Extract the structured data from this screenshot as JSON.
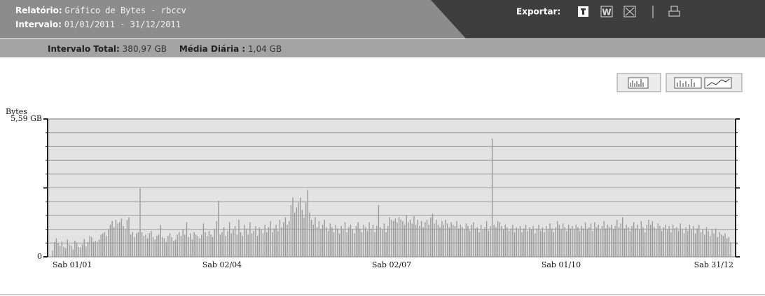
{
  "header": {
    "report_label": "Relatório:",
    "report_value": "Gráfico de Bytes - rbccv",
    "interval_label": "Intervalo:",
    "interval_value": "01/01/2011 - 31/12/2011",
    "export_label": "Exportar:"
  },
  "summary": {
    "total_label": "Intervalo Total:",
    "total_value": "380,97 GB",
    "daily_label": "Média Diária :",
    "daily_value": "1,04 GB"
  },
  "chart_data": {
    "type": "bar",
    "y_label": "Bytes",
    "color": "#9a9a9a",
    "ylim": [
      0,
      5.59
    ],
    "yticks": [
      0,
      {
        "value": 0.559,
        "label": null
      },
      {
        "value": 1.118,
        "label": null
      },
      {
        "value": 1.677,
        "label": null
      },
      {
        "value": 2.236,
        "label": null
      },
      {
        "value": 2.795,
        "label": null
      },
      {
        "value": 3.354,
        "label": null
      },
      {
        "value": 3.913,
        "label": null
      },
      {
        "value": 4.472,
        "label": null
      },
      {
        "value": 5.031,
        "label": null
      },
      {
        "value": 5.59,
        "label": "5,59 GB"
      }
    ],
    "grid": true,
    "categories": [
      "Sab 01/01",
      null,
      null,
      null,
      null,
      null,
      null,
      null,
      null,
      null,
      null,
      null,
      null,
      null,
      null,
      null,
      null,
      null,
      null,
      null,
      null,
      null,
      null,
      null,
      null,
      null,
      null,
      null,
      null,
      null,
      null,
      null,
      null,
      null,
      null,
      null,
      null,
      null,
      null,
      null,
      null,
      null,
      null,
      null,
      null,
      null,
      null,
      null,
      null,
      null,
      null,
      null,
      null,
      null,
      null,
      null,
      null,
      null,
      null,
      null,
      null,
      null,
      null,
      null,
      null,
      null,
      null,
      null,
      null,
      null,
      null,
      null,
      null,
      null,
      null,
      null,
      null,
      null,
      null,
      null,
      null,
      null,
      null,
      null,
      null,
      null,
      null,
      null,
      null,
      null,
      null,
      "Sab 02/04",
      null,
      null,
      null,
      null,
      null,
      null,
      null,
      null,
      null,
      null,
      null,
      null,
      null,
      null,
      null,
      null,
      null,
      null,
      null,
      null,
      null,
      null,
      null,
      null,
      null,
      null,
      null,
      null,
      null,
      null,
      null,
      null,
      null,
      null,
      null,
      null,
      null,
      null,
      null,
      null,
      null,
      null,
      null,
      null,
      null,
      null,
      null,
      null,
      null,
      null,
      null,
      null,
      null,
      null,
      null,
      null,
      null,
      null,
      null,
      null,
      null,
      null,
      null,
      null,
      null,
      null,
      null,
      null,
      null,
      null,
      null,
      null,
      null,
      null,
      null,
      null,
      null,
      null,
      null,
      null,
      null,
      null,
      null,
      null,
      null,
      null,
      null,
      null,
      null,
      null,
      "Sab 02/07",
      null,
      null,
      null,
      null,
      null,
      null,
      null,
      null,
      null,
      null,
      null,
      null,
      null,
      null,
      null,
      null,
      null,
      null,
      null,
      null,
      null,
      null,
      null,
      null,
      null,
      null,
      null,
      null,
      null,
      null,
      null,
      null,
      null,
      null,
      null,
      null,
      null,
      null,
      null,
      null,
      null,
      null,
      null,
      null,
      null,
      null,
      null,
      null,
      null,
      null,
      null,
      null,
      null,
      null,
      null,
      null,
      null,
      null,
      null,
      null,
      null,
      null,
      null,
      null,
      null,
      null,
      null,
      null,
      null,
      null,
      null,
      null,
      null,
      null,
      null,
      null,
      null,
      null,
      null,
      null,
      null,
      null,
      null,
      null,
      null,
      null,
      null,
      null,
      null,
      null,
      "Sab 01/10",
      null,
      null,
      null,
      null,
      null,
      null,
      null,
      null,
      null,
      null,
      null,
      null,
      null,
      null,
      null,
      null,
      null,
      null,
      null,
      null,
      null,
      null,
      null,
      null,
      null,
      null,
      null,
      null,
      null,
      null,
      null,
      null,
      null,
      null,
      null,
      null,
      null,
      null,
      null,
      null,
      null,
      null,
      null,
      null,
      null,
      null,
      null,
      null,
      null,
      null,
      null,
      null,
      null,
      null,
      null,
      null,
      null,
      null,
      null,
      null,
      null,
      null,
      null,
      null,
      null,
      null,
      null,
      null,
      null,
      null,
      null,
      null,
      null,
      null,
      null,
      null,
      null,
      null,
      null,
      null,
      null,
      null,
      null,
      null,
      null,
      null,
      null,
      null,
      null,
      null,
      "Sab 31/12"
    ],
    "values": [
      0.25,
      0.6,
      0.75,
      0.55,
      0.45,
      0.62,
      0.4,
      0.35,
      0.7,
      0.5,
      0.45,
      0.3,
      0.65,
      0.55,
      0.4,
      0.38,
      0.5,
      0.72,
      0.42,
      0.6,
      0.85,
      0.8,
      0.6,
      0.65,
      0.62,
      0.7,
      0.9,
      0.95,
      1.0,
      0.85,
      1.1,
      1.3,
      1.45,
      1.2,
      1.5,
      1.35,
      1.4,
      1.55,
      1.25,
      1.1,
      1.5,
      1.6,
      0.9,
      1.0,
      0.8,
      0.95,
      1.0,
      2.81,
      1.0,
      0.85,
      0.9,
      0.75,
      0.95,
      1.05,
      0.8,
      0.7,
      0.85,
      0.9,
      1.3,
      0.8,
      0.75,
      0.6,
      0.85,
      0.95,
      0.8,
      0.65,
      0.7,
      0.9,
      1.0,
      0.85,
      1.1,
      0.9,
      1.4,
      0.8,
      0.95,
      0.7,
      1.0,
      0.9,
      0.85,
      0.75,
      0.9,
      1.35,
      1.0,
      0.85,
      1.05,
      0.9,
      0.8,
      1.1,
      1.45,
      2.27,
      0.9,
      1.0,
      1.2,
      0.85,
      1.05,
      1.4,
      0.95,
      1.1,
      1.25,
      0.9,
      1.5,
      1.0,
      0.85,
      1.3,
      1.1,
      0.9,
      1.4,
      0.95,
      1.05,
      1.25,
      0.85,
      1.2,
      1.1,
      0.95,
      1.3,
      1.0,
      1.2,
      1.45,
      1.0,
      1.15,
      1.3,
      1.05,
      1.5,
      1.2,
      1.4,
      1.6,
      1.3,
      1.45,
      2.1,
      2.4,
      1.8,
      2.0,
      2.2,
      2.4,
      1.9,
      1.6,
      2.2,
      2.7,
      1.8,
      1.5,
      1.3,
      1.6,
      1.2,
      1.45,
      1.1,
      1.3,
      1.5,
      1.2,
      1.05,
      1.35,
      1.2,
      1.0,
      1.3,
      1.15,
      0.95,
      1.25,
      1.1,
      1.4,
      1.0,
      1.2,
      1.3,
      1.1,
      0.95,
      1.25,
      1.4,
      1.15,
      1.0,
      1.3,
      1.2,
      1.05,
      1.4,
      1.15,
      1.3,
      1.0,
      1.25,
      2.1,
      1.2,
      1.1,
      1.35,
      1.0,
      1.25,
      1.6,
      1.5,
      1.45,
      1.55,
      1.4,
      1.6,
      1.5,
      1.45,
      1.3,
      1.7,
      1.4,
      1.5,
      1.35,
      1.65,
      1.3,
      1.5,
      1.25,
      1.45,
      1.2,
      1.4,
      1.5,
      1.3,
      1.6,
      1.75,
      1.35,
      1.5,
      1.3,
      1.2,
      1.45,
      1.3,
      1.5,
      1.35,
      1.2,
      1.4,
      1.3,
      1.25,
      1.45,
      1.15,
      1.3,
      1.2,
      1.1,
      1.35,
      1.25,
      1.05,
      1.3,
      1.4,
      1.15,
      1.2,
      1.0,
      1.3,
      1.1,
      1.2,
      1.45,
      1.05,
      1.25,
      4.8,
      1.3,
      1.2,
      1.45,
      1.4,
      1.25,
      1.1,
      1.3,
      1.2,
      1.05,
      1.15,
      1.3,
      1.0,
      1.2,
      1.1,
      1.25,
      1.0,
      1.15,
      1.3,
      1.05,
      1.2,
      1.1,
      1.25,
      0.95,
      1.15,
      1.3,
      1.05,
      1.2,
      1.0,
      1.25,
      1.1,
      1.35,
      1.15,
      1.0,
      1.2,
      1.45,
      1.3,
      1.1,
      1.35,
      1.2,
      1.05,
      1.3,
      1.15,
      1.25,
      1.1,
      1.3,
      1.2,
      1.05,
      1.25,
      1.15,
      1.4,
      1.1,
      1.2,
      1.35,
      1.05,
      1.4,
      1.2,
      1.3,
      1.1,
      1.25,
      1.45,
      1.15,
      1.3,
      1.2,
      1.3,
      1.1,
      1.25,
      1.5,
      1.2,
      1.35,
      1.6,
      1.15,
      1.3,
      1.2,
      1.05,
      1.25,
      1.4,
      1.15,
      1.3,
      1.1,
      1.45,
      1.2,
      1.0,
      1.3,
      1.5,
      1.3,
      1.45,
      1.2,
      1.1,
      1.35,
      1.25,
      1.05,
      1.2,
      1.3,
      1.1,
      1.25,
      1.0,
      1.3,
      1.15,
      1.2,
      1.05,
      1.35,
      1.1,
      0.95,
      1.2,
      1.05,
      1.3,
      1.1,
      1.25,
      0.95,
      1.15,
      1.3,
      1.0,
      1.1,
      0.9,
      1.2,
      1.05,
      0.85,
      1.1,
      0.95,
      1.15,
      0.8,
      1.0,
      0.9,
      0.85,
      0.95,
      0.75,
      0.8,
      0.6
    ]
  }
}
